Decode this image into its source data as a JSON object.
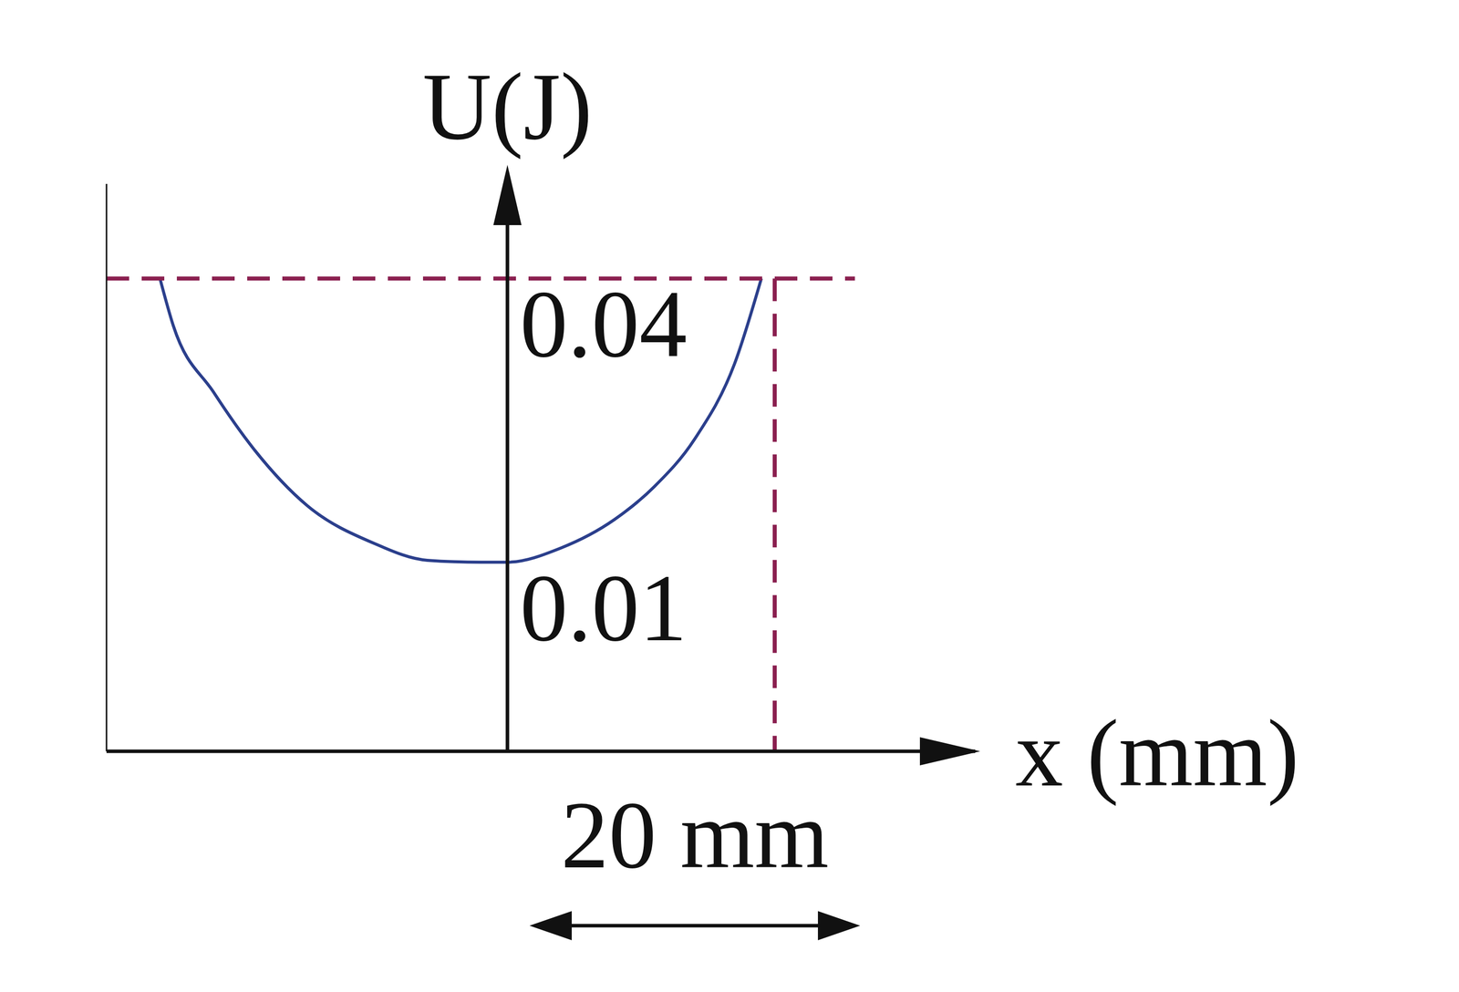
{
  "chart_data": {
    "type": "line",
    "y_label": "U(J)",
    "x_label": "x (mm)",
    "annotations": [
      "20 mm"
    ],
    "series": [
      {
        "x": [
          -26,
          -25,
          -22,
          -19,
          -15,
          -10,
          -6,
          -2,
          0,
          4,
          8,
          11,
          14,
          17,
          19
        ],
        "values": [
          0.04,
          0.035,
          0.028,
          0.022,
          0.016,
          0.012,
          0.0102,
          0.01,
          0.01,
          0.0115,
          0.0145,
          0.018,
          0.023,
          0.031,
          0.04
        ],
        "color": "#2b3f8c",
        "line_style": "solid"
      },
      {
        "x": [
          -30,
          26
        ],
        "values": [
          0.04,
          0.04
        ],
        "color": "#8a1f4f",
        "line_style": "dashed"
      },
      {
        "x": [
          20,
          20
        ],
        "values": [
          0.04,
          -0.01
        ],
        "color": "#8a1f4f",
        "line_style": "dashed"
      }
    ],
    "xlim": [
      -30,
      35
    ],
    "ylim": [
      -0.01,
      0.05
    ],
    "xticks": [],
    "yticks": [
      0.01,
      0.04
    ],
    "tick_labels": "y",
    "grid": false
  }
}
